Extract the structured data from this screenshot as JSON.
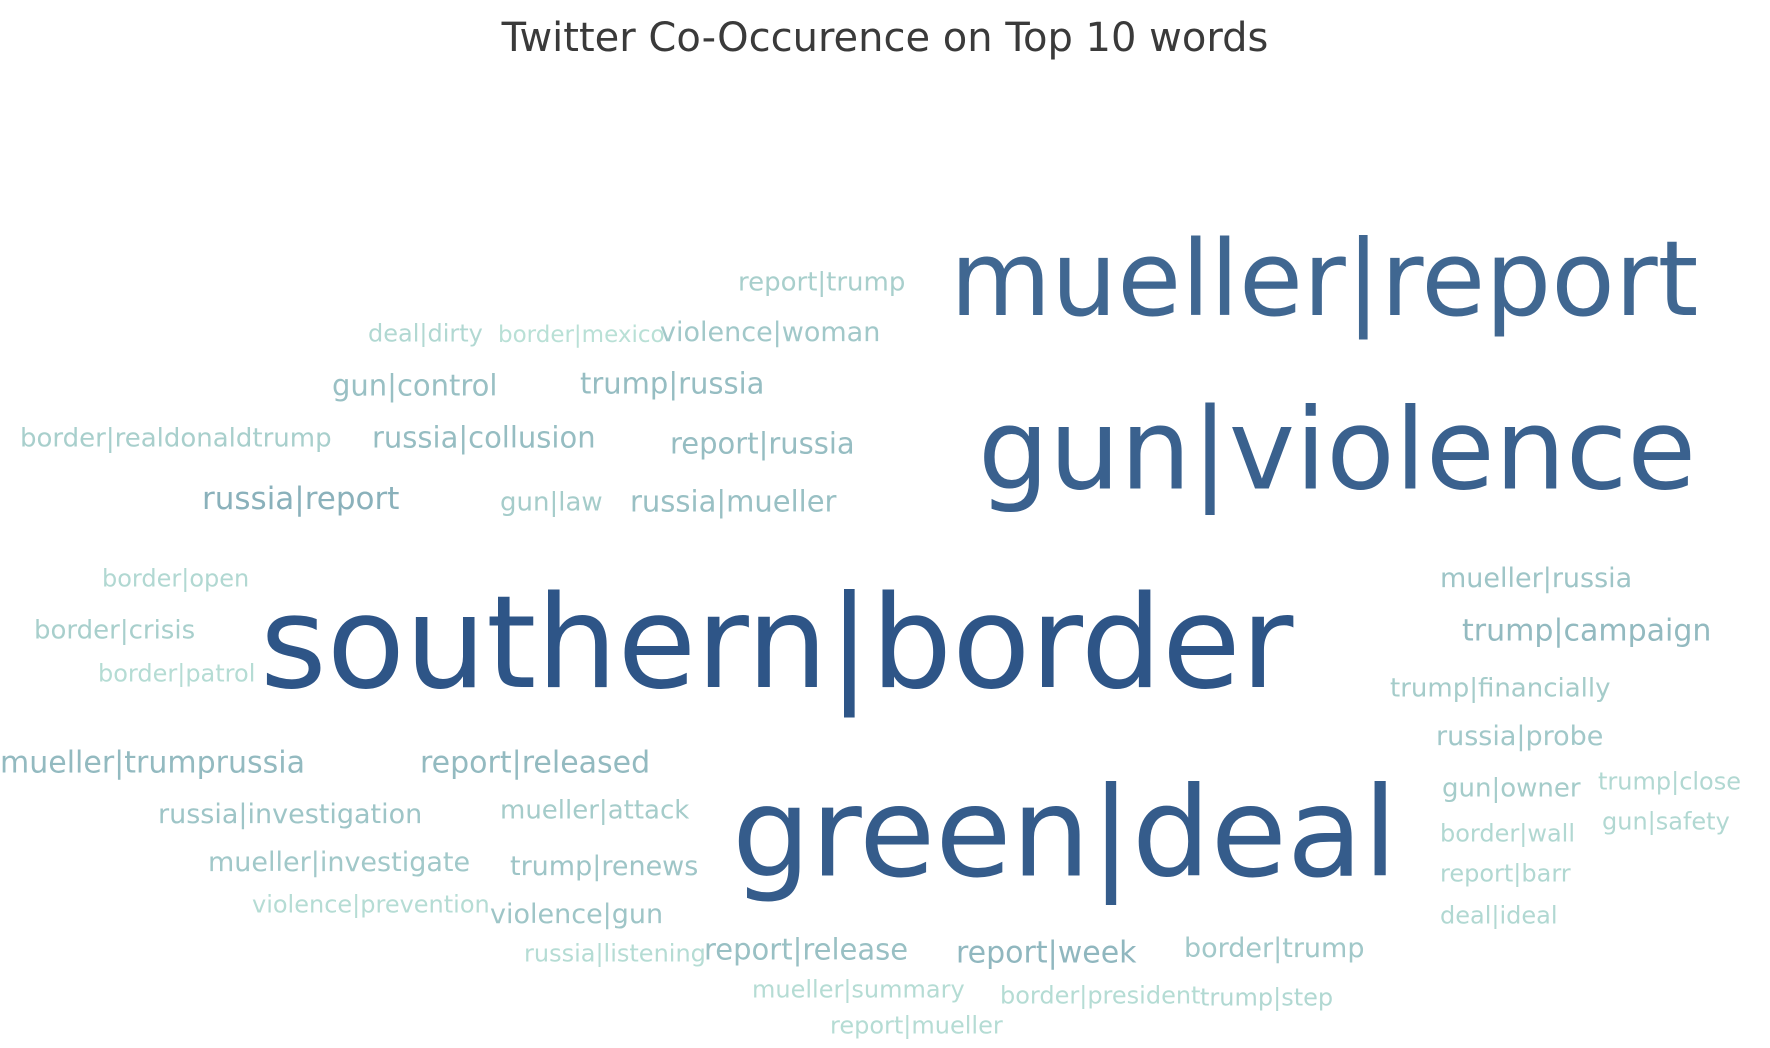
{
  "chart_data": {
    "type": "wordcloud",
    "title": "Twitter Co-Occurence on Top 10 words",
    "color_scale": [
      "#b9e0d6",
      "#2e5587"
    ],
    "words": [
      {
        "text": "southern|border",
        "weight": 100
      },
      {
        "text": "green|deal",
        "weight": 90
      },
      {
        "text": "gun|violence",
        "weight": 84
      },
      {
        "text": "mueller|report",
        "weight": 76
      },
      {
        "text": "russia|report",
        "weight": 30
      },
      {
        "text": "report|week",
        "weight": 28
      },
      {
        "text": "trump|campaign",
        "weight": 27
      },
      {
        "text": "report|released",
        "weight": 27
      },
      {
        "text": "mueller|trumprussia",
        "weight": 27
      },
      {
        "text": "russia|collusion",
        "weight": 26
      },
      {
        "text": "report|russia",
        "weight": 26
      },
      {
        "text": "trump|russia",
        "weight": 26
      },
      {
        "text": "report|release",
        "weight": 25
      },
      {
        "text": "russia|mueller",
        "weight": 25
      },
      {
        "text": "gun|control",
        "weight": 25
      },
      {
        "text": "violence|gun",
        "weight": 23
      },
      {
        "text": "russia|investigation",
        "weight": 23
      },
      {
        "text": "mueller|russia",
        "weight": 23
      },
      {
        "text": "trump|renews",
        "weight": 23
      },
      {
        "text": "russia|probe",
        "weight": 22
      },
      {
        "text": "border|trump",
        "weight": 22
      },
      {
        "text": "mueller|investigate",
        "weight": 22
      },
      {
        "text": "violence|woman",
        "weight": 22
      },
      {
        "text": "trump|financially",
        "weight": 21
      },
      {
        "text": "mueller|attack",
        "weight": 21
      },
      {
        "text": "gun|owner",
        "weight": 21
      },
      {
        "text": "gun|law",
        "weight": 21
      },
      {
        "text": "report|trump",
        "weight": 20
      },
      {
        "text": "border|realdonaldtrump",
        "weight": 20
      },
      {
        "text": "border|crisis",
        "weight": 20
      },
      {
        "text": "gun|safety",
        "weight": 17
      },
      {
        "text": "border|open",
        "weight": 17
      },
      {
        "text": "trump|close",
        "weight": 17
      },
      {
        "text": "deal|ideal",
        "weight": 17
      },
      {
        "text": "border|wall",
        "weight": 17
      },
      {
        "text": "report|barr",
        "weight": 17
      },
      {
        "text": "deal|dirty",
        "weight": 17
      },
      {
        "text": "trump|step",
        "weight": 17
      },
      {
        "text": "border|patrol",
        "weight": 16
      },
      {
        "text": "violence|prevention",
        "weight": 16
      },
      {
        "text": "border|president",
        "weight": 16
      },
      {
        "text": "russia|listening",
        "weight": 16
      },
      {
        "text": "mueller|summary",
        "weight": 16
      },
      {
        "text": "report|mueller",
        "weight": 16
      },
      {
        "text": "border|mexico",
        "weight": 15
      }
    ]
  }
}
